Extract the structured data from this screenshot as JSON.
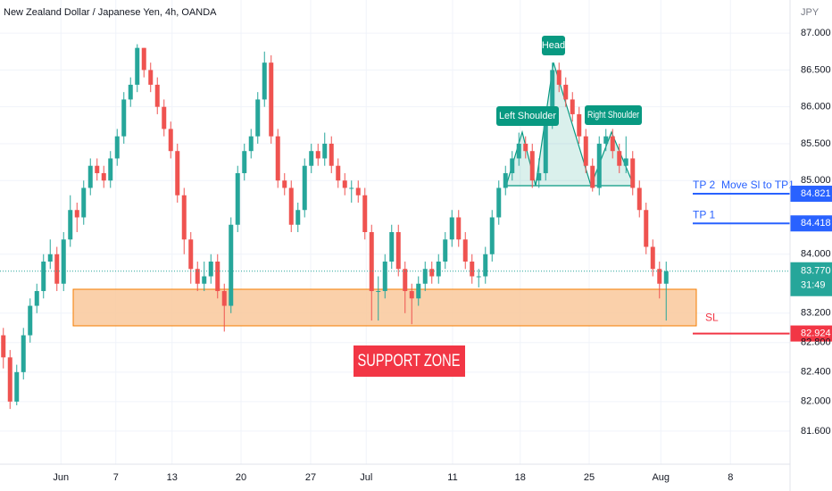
{
  "chart_data": {
    "type": "candlestick",
    "title": "New Zealand Dollar / Japanese Yen, 4h, OANDA",
    "currency": "JPY",
    "up_color": "#26a69a",
    "down_color": "#ef5350",
    "grid": true,
    "xlim": [
      -0.5,
      117.5
    ],
    "ylim": [
      81.15,
      87.45
    ],
    "xticks": [
      {
        "value": 8.6,
        "label": "Jun"
      },
      {
        "value": 16.8,
        "label": "7"
      },
      {
        "value": 25.2,
        "label": "13"
      },
      {
        "value": 35.5,
        "label": "20"
      },
      {
        "value": 45.9,
        "label": "27"
      },
      {
        "value": 54.2,
        "label": "Jul"
      },
      {
        "value": 67.1,
        "label": "11"
      },
      {
        "value": 77.2,
        "label": "18"
      },
      {
        "value": 87.5,
        "label": "25"
      },
      {
        "value": 98.2,
        "label": "Aug"
      },
      {
        "value": 108.6,
        "label": "8"
      }
    ],
    "yticks": [
      {
        "value": 87,
        "label": "87.000"
      },
      {
        "value": 86.5,
        "label": "86.500"
      },
      {
        "value": 86,
        "label": "86.000"
      },
      {
        "value": 85.5,
        "label": "85.500"
      },
      {
        "value": 85,
        "label": "85.000"
      },
      {
        "value": 84,
        "label": "84.000"
      },
      {
        "value": 83.2,
        "label": "83.200"
      },
      {
        "value": 82.8,
        "label": "82.800"
      },
      {
        "value": 82.4,
        "label": "82.400"
      },
      {
        "value": 82,
        "label": "82.000"
      },
      {
        "value": 81.6,
        "label": "81.600"
      }
    ],
    "open": [
      82.9,
      82.6,
      82.0,
      82.4,
      82.9,
      83.3,
      83.5,
      83.9,
      84.0,
      83.6,
      84.2,
      84.6,
      84.5,
      84.9,
      85.2,
      85.1,
      85.0,
      85.3,
      85.6,
      86.1,
      86.3,
      86.8,
      86.5,
      86.3,
      86.0,
      85.7,
      85.4,
      84.8,
      84.2,
      83.8,
      83.6,
      83.7,
      83.9,
      83.5,
      83.3,
      84.4,
      85.1,
      85.4,
      85.6,
      86.1,
      86.6,
      85.6,
      85.0,
      84.9,
      84.4,
      84.6,
      85.2,
      85.4,
      85.3,
      85.5,
      85.2,
      85.0,
      84.9,
      84.9,
      84.8,
      84.3,
      83.5,
      83.5,
      83.9,
      84.3,
      83.8,
      83.5,
      83.4,
      83.6,
      83.8,
      83.7,
      83.9,
      84.2,
      84.5,
      84.2,
      83.9,
      83.7,
      83.7,
      84.0,
      84.5,
      84.9,
      85.1,
      85.3,
      85.5,
      85.4,
      85.0,
      85.1,
      85.8,
      86.5,
      86.3,
      86.1,
      85.9,
      85.6,
      85.2,
      84.9,
      85.5,
      85.6,
      85.4,
      85.2,
      85.3,
      84.9,
      84.6,
      84.1,
      83.8,
      83.6
    ],
    "high": [
      83.0,
      82.7,
      82.5,
      83.0,
      83.4,
      83.6,
      84.0,
      84.2,
      84.1,
      84.3,
      84.8,
      84.7,
      85.0,
      85.3,
      85.3,
      85.2,
      85.4,
      85.7,
      86.2,
      86.4,
      86.85,
      86.8,
      86.6,
      86.4,
      86.1,
      85.8,
      85.5,
      84.9,
      84.3,
      83.9,
      83.9,
      84.0,
      84.0,
      83.6,
      84.5,
      85.2,
      85.5,
      85.7,
      86.2,
      86.75,
      86.7,
      85.7,
      85.1,
      85.0,
      84.7,
      85.3,
      85.5,
      85.5,
      85.65,
      85.6,
      85.3,
      85.1,
      85.0,
      85.0,
      84.9,
      84.4,
      83.7,
      84.0,
      84.4,
      84.4,
      83.9,
      83.6,
      83.7,
      83.9,
      83.9,
      84.0,
      84.3,
      84.6,
      84.6,
      84.3,
      84.0,
      83.8,
      84.1,
      84.6,
      85.0,
      85.2,
      85.4,
      85.65,
      85.6,
      85.5,
      85.3,
      85.9,
      86.6,
      86.6,
      86.4,
      86.2,
      86.0,
      85.7,
      85.3,
      85.6,
      85.7,
      85.7,
      85.5,
      85.6,
      85.4,
      85.0,
      84.7,
      84.2,
      83.9,
      83.9
    ],
    "low": [
      82.45,
      81.9,
      81.95,
      82.3,
      82.8,
      83.2,
      83.4,
      83.8,
      83.5,
      83.5,
      84.1,
      84.3,
      84.4,
      84.8,
      85.0,
      84.9,
      84.9,
      85.2,
      85.5,
      86.0,
      86.2,
      86.4,
      86.2,
      85.9,
      85.6,
      85.3,
      84.7,
      84.0,
      83.6,
      83.5,
      83.5,
      83.6,
      83.4,
      82.95,
      83.2,
      84.3,
      85.0,
      85.3,
      85.5,
      86.0,
      85.5,
      84.9,
      84.8,
      84.3,
      84.3,
      84.5,
      85.1,
      85.2,
      85.2,
      85.1,
      84.9,
      84.8,
      84.7,
      84.7,
      84.2,
      83.1,
      83.1,
      83.4,
      83.8,
      83.7,
      83.2,
      83.05,
      83.3,
      83.5,
      83.6,
      83.6,
      83.8,
      84.1,
      84.1,
      83.8,
      83.6,
      83.55,
      83.6,
      83.9,
      84.4,
      84.8,
      85.0,
      85.2,
      85.3,
      84.9,
      84.9,
      85.0,
      85.7,
      86.2,
      86.0,
      85.8,
      85.5,
      85.1,
      84.85,
      84.8,
      85.4,
      85.3,
      85.1,
      85.1,
      84.8,
      84.5,
      84.0,
      83.7,
      83.4,
      83.1
    ],
    "close": [
      82.6,
      82.0,
      82.4,
      82.9,
      83.3,
      83.5,
      83.9,
      84.0,
      83.6,
      84.2,
      84.6,
      84.5,
      84.9,
      85.2,
      85.1,
      85.0,
      85.3,
      85.6,
      86.1,
      86.3,
      86.8,
      86.5,
      86.3,
      86.0,
      85.7,
      85.4,
      84.8,
      84.2,
      83.8,
      83.6,
      83.7,
      83.9,
      83.5,
      83.3,
      84.4,
      85.1,
      85.4,
      85.6,
      86.1,
      86.6,
      85.6,
      85.0,
      84.9,
      84.4,
      84.6,
      85.2,
      85.4,
      85.3,
      85.5,
      85.2,
      85.0,
      84.9,
      84.9,
      84.8,
      84.3,
      83.5,
      83.5,
      83.9,
      84.3,
      83.8,
      83.5,
      83.4,
      83.6,
      83.8,
      83.7,
      83.9,
      84.2,
      84.5,
      84.2,
      83.9,
      83.7,
      83.7,
      84.0,
      84.5,
      84.9,
      85.1,
      85.3,
      85.5,
      85.4,
      85.0,
      85.1,
      85.8,
      86.5,
      86.3,
      86.1,
      85.9,
      85.6,
      85.2,
      84.9,
      85.5,
      85.6,
      85.4,
      85.2,
      85.3,
      84.9,
      84.6,
      84.1,
      83.8,
      83.6,
      83.77
    ],
    "levels": [
      {
        "name": "TP 2",
        "note": "Move Sl to TP1",
        "value": 84.821,
        "label": "84.821",
        "color": "#2962ff"
      },
      {
        "name": "TP 1",
        "value": 84.418,
        "label": "84.418",
        "color": "#2962ff"
      },
      {
        "name": "SL",
        "value": 82.924,
        "label": "82.924",
        "color": "#f23645"
      }
    ],
    "last_price": {
      "value": 83.77,
      "label": "83.770",
      "countdown": "31:49",
      "color": "#26a69a"
    },
    "annotations": {
      "head": "Head",
      "left_shoulder": "Left Shoulder",
      "right_shoulder": "Right Shoulder",
      "zone": "SUPPORT ZONE"
    }
  }
}
